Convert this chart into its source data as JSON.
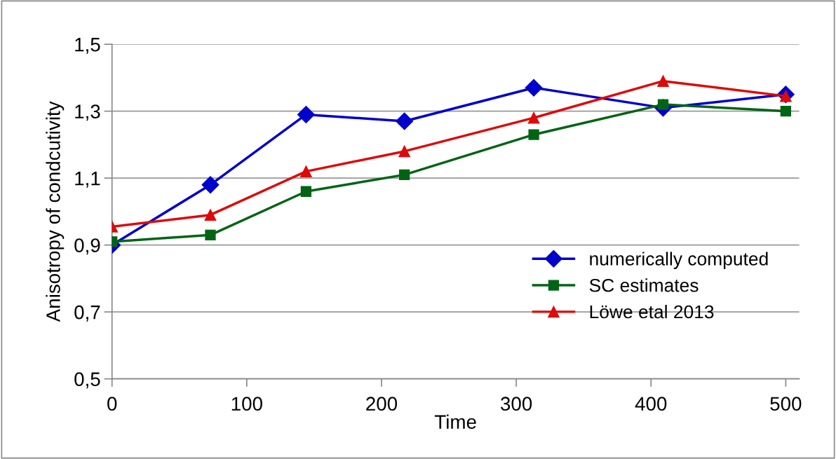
{
  "chart_data": {
    "type": "line",
    "xlabel": "Time",
    "ylabel": "Anisotropy of condcutivity",
    "x": [
      0,
      73,
      144,
      217,
      313,
      409,
      500
    ],
    "series": [
      {
        "name": "numerically computed",
        "color": "#0000cc",
        "marker": "diamond",
        "values": [
          0.9,
          1.08,
          1.29,
          1.27,
          1.37,
          1.31,
          1.35
        ]
      },
      {
        "name": "SC estimates",
        "color": "#006414",
        "marker": "square",
        "values": [
          0.91,
          0.93,
          1.06,
          1.11,
          1.23,
          1.32,
          1.3
        ]
      },
      {
        "name": "Löwe etal 2013",
        "color": "#dd0a0a",
        "marker": "triangle",
        "values": [
          0.955,
          0.99,
          1.12,
          1.18,
          1.28,
          1.39,
          1.345
        ]
      }
    ],
    "xlim": [
      0,
      510
    ],
    "xticks": [
      0,
      100,
      200,
      300,
      400,
      500
    ],
    "ylim": [
      0.5,
      1.5
    ],
    "yticks": [
      {
        "value": 0.5,
        "label": "0,5"
      },
      {
        "value": 0.7,
        "label": "0,7"
      },
      {
        "value": 0.9,
        "label": "0,9"
      },
      {
        "value": 1.1,
        "label": "1,1"
      },
      {
        "value": 1.3,
        "label": "1,3"
      },
      {
        "value": 1.5,
        "label": "1,5"
      }
    ],
    "grid": "y",
    "legend": "bottom right",
    "line_style": "solid"
  }
}
